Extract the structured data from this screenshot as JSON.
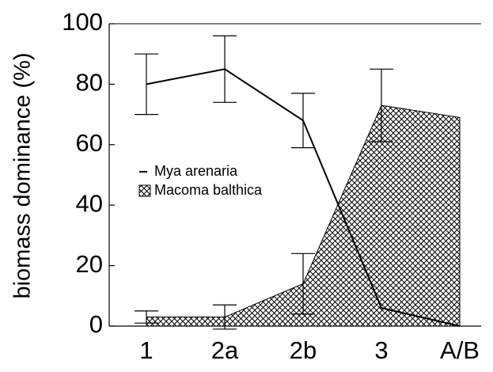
{
  "chart_data": {
    "type": "line-area",
    "y_label": "biomass dominance (%)",
    "categories": [
      "1",
      "2a",
      "2b",
      "3",
      "A/B"
    ],
    "series": [
      {
        "name": "Mya arenaria",
        "color": "#000000",
        "kind": "line",
        "values": [
          80,
          85,
          68,
          6,
          0
        ],
        "errors": [
          10,
          11,
          9,
          null,
          null
        ]
      },
      {
        "name": "Macoma balthica",
        "color": "#000000",
        "kind": "hatched-area",
        "values": [
          3,
          3,
          14,
          73,
          69
        ],
        "errors": [
          2,
          4,
          10,
          12,
          null
        ]
      }
    ],
    "ylim": [
      0,
      100
    ],
    "yticks": [
      0,
      20,
      40,
      60,
      80,
      100
    ]
  }
}
